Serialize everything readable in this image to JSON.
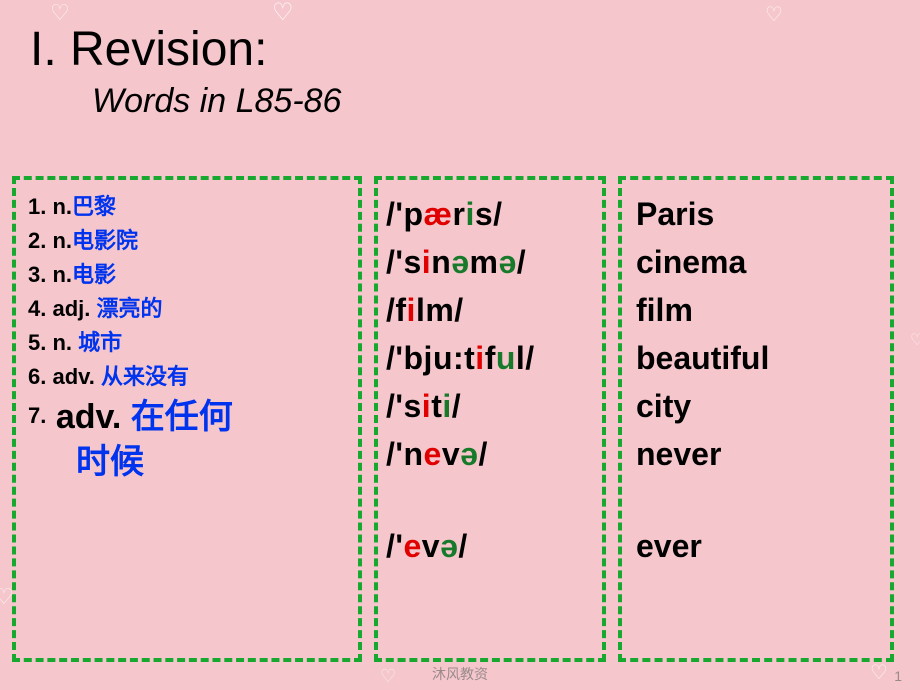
{
  "decor": {
    "heart_glyph": "♡"
  },
  "header": {
    "title": "I. Revision:",
    "subtitle": "Words in L85-86"
  },
  "col1": {
    "items": [
      {
        "num": "1.",
        "pos": "n.",
        "cn": "巴黎"
      },
      {
        "num": "2.",
        "pos": "n.",
        "cn": "电影院"
      },
      {
        "num": "3.",
        "pos": "n.",
        "cn": "电影"
      },
      {
        "num": "4.",
        "pos": "adj.",
        "cn": "漂亮的"
      },
      {
        "num": "5.",
        "pos": "n.",
        "cn": "城市"
      },
      {
        "num": "6.",
        "pos": "adv.",
        "cn": "从来没有"
      }
    ],
    "big": {
      "num": "7.",
      "pos": "adv.",
      "cn1": "在任何",
      "cn2": "时候"
    }
  },
  "col2": {
    "rows": [
      [
        {
          "t": "/'p",
          "c": "black"
        },
        {
          "t": "æ",
          "c": "red"
        },
        {
          "t": "r",
          "c": "black"
        },
        {
          "t": "i",
          "c": "green"
        },
        {
          "t": "s/",
          "c": "black"
        }
      ],
      [
        {
          "t": "/'s",
          "c": "black"
        },
        {
          "t": "i",
          "c": "red"
        },
        {
          "t": "n",
          "c": "black"
        },
        {
          "t": "ə",
          "c": "green"
        },
        {
          "t": "m",
          "c": "black"
        },
        {
          "t": "ə",
          "c": "green"
        },
        {
          "t": "/",
          "c": "black"
        }
      ],
      [
        {
          "t": "/f",
          "c": "black"
        },
        {
          "t": "i",
          "c": "red"
        },
        {
          "t": "lm/",
          "c": "black"
        }
      ],
      [
        {
          "t": "/'bju:t",
          "c": "black"
        },
        {
          "t": "i",
          "c": "red"
        },
        {
          "t": "f",
          "c": "black"
        },
        {
          "t": "u",
          "c": "green"
        },
        {
          "t": "l/",
          "c": "black"
        }
      ],
      [
        {
          "t": "/'s",
          "c": "black"
        },
        {
          "t": "i",
          "c": "red"
        },
        {
          "t": "t",
          "c": "black"
        },
        {
          "t": "i",
          "c": "green"
        },
        {
          "t": "/",
          "c": "black"
        }
      ],
      [
        {
          "t": "/'n",
          "c": "black"
        },
        {
          "t": "e",
          "c": "red"
        },
        {
          "t": "v",
          "c": "black"
        },
        {
          "t": "ə",
          "c": "green"
        },
        {
          "t": "/",
          "c": "black"
        }
      ]
    ],
    "last": [
      {
        "t": "/'",
        "c": "black"
      },
      {
        "t": "e",
        "c": "red"
      },
      {
        "t": "v",
        "c": "black"
      },
      {
        "t": "ə",
        "c": "green"
      },
      {
        "t": "/",
        "c": "black"
      }
    ]
  },
  "col3": {
    "words": [
      "Paris",
      "cinema",
      "film",
      "beautiful",
      " city",
      "never"
    ],
    "last": "ever"
  },
  "footer": {
    "text": "沐风教资",
    "page": "1"
  },
  "style": {
    "bg": "#f5c7cc",
    "border_color": "#17a82f",
    "cn_color": "#0033ee",
    "red": "#e00000",
    "green": "#177a2b"
  }
}
